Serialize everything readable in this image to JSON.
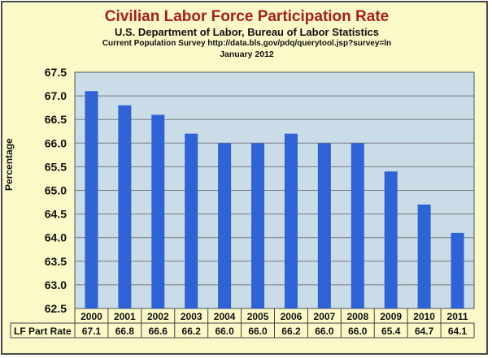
{
  "chart_data": {
    "type": "bar",
    "title": "Civilian Labor Force Participation Rate",
    "subtitle": "U.S. Department of Labor, Bureau of Labor Statistics",
    "source": "Current Population Survey http://data.bls.gov/pdq/querytool.jsp?survey=ln",
    "date": "January 2012",
    "ylabel": "Percentage",
    "xlabel": "",
    "ylim": [
      62.5,
      67.5
    ],
    "yticks": [
      "62.5",
      "63.0",
      "63.5",
      "64.0",
      "64.5",
      "65.0",
      "65.5",
      "66.0",
      "66.5",
      "67.0",
      "67.5"
    ],
    "categories": [
      "2000",
      "2001",
      "2002",
      "2003",
      "2004",
      "2005",
      "2006",
      "2007",
      "2008",
      "2009",
      "2010",
      "2011"
    ],
    "series": [
      {
        "name": "LF Part Rate",
        "values": [
          67.1,
          66.8,
          66.6,
          66.2,
          66.0,
          66.0,
          66.2,
          66.0,
          66.0,
          65.4,
          64.7,
          64.1
        ],
        "value_labels": [
          "67.1",
          "66.8",
          "66.6",
          "66.2",
          "66.0",
          "66.0",
          "66.2",
          "66.0",
          "66.0",
          "65.4",
          "64.7",
          "64.1"
        ]
      }
    ],
    "grid": true,
    "data_table": true,
    "colors": {
      "bar": "#2f62d4",
      "plot_bg": "#c9dce8",
      "frame_bg": "#fbf9c8",
      "title": "#a81e1e",
      "grid": "#7a7a7a"
    }
  }
}
